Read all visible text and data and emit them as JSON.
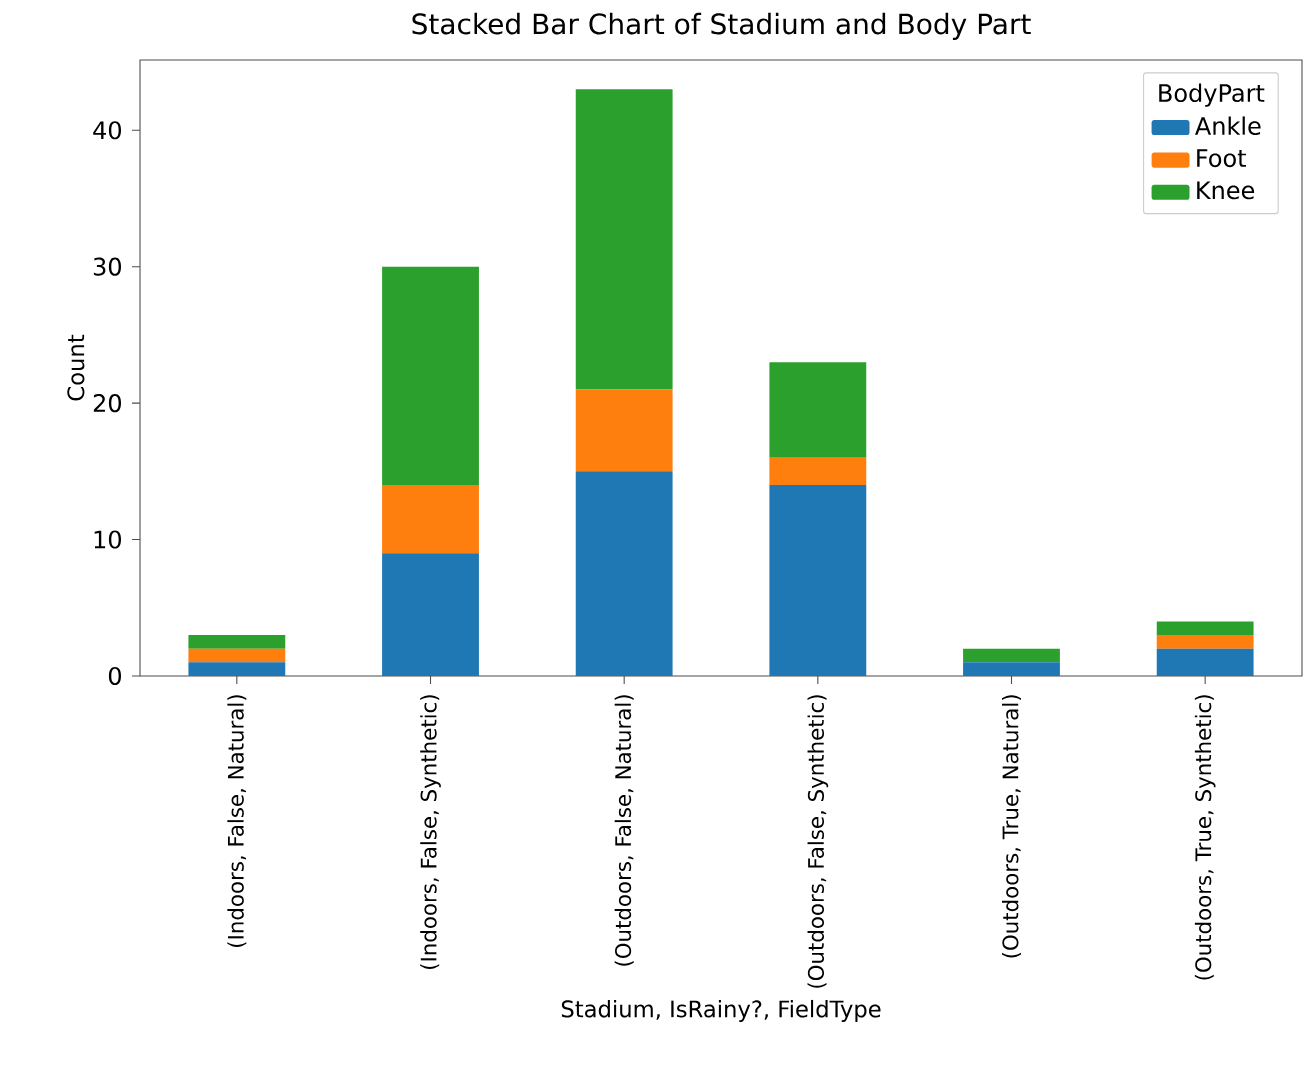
{
  "chart_data": {
    "type": "bar",
    "stacked": true,
    "title": "Stacked Bar Chart of Stadium and Body Part",
    "xlabel": "Stadium, IsRainy?, FieldType",
    "ylabel": "Count",
    "legend_title": "BodyPart",
    "legend": "top right",
    "categories": [
      "(Indoors, False, Natural)",
      "(Indoors, False, Synthetic)",
      "(Outdoors, False, Natural)",
      "(Outdoors, False, Synthetic)",
      "(Outdoors, True, Natural)",
      "(Outdoors, True, Synthetic)"
    ],
    "series": [
      {
        "name": "Ankle",
        "color": "#1f77b4",
        "values": [
          1,
          9,
          15,
          14,
          1,
          2
        ]
      },
      {
        "name": "Foot",
        "color": "#ff7f0e",
        "values": [
          1,
          5,
          6,
          2,
          0,
          1
        ]
      },
      {
        "name": "Knee",
        "color": "#2ca02c",
        "values": [
          1,
          16,
          22,
          7,
          1,
          1
        ]
      }
    ],
    "ylim": [
      0,
      45.15
    ],
    "yticks": [
      0,
      10,
      20,
      30,
      40
    ]
  }
}
